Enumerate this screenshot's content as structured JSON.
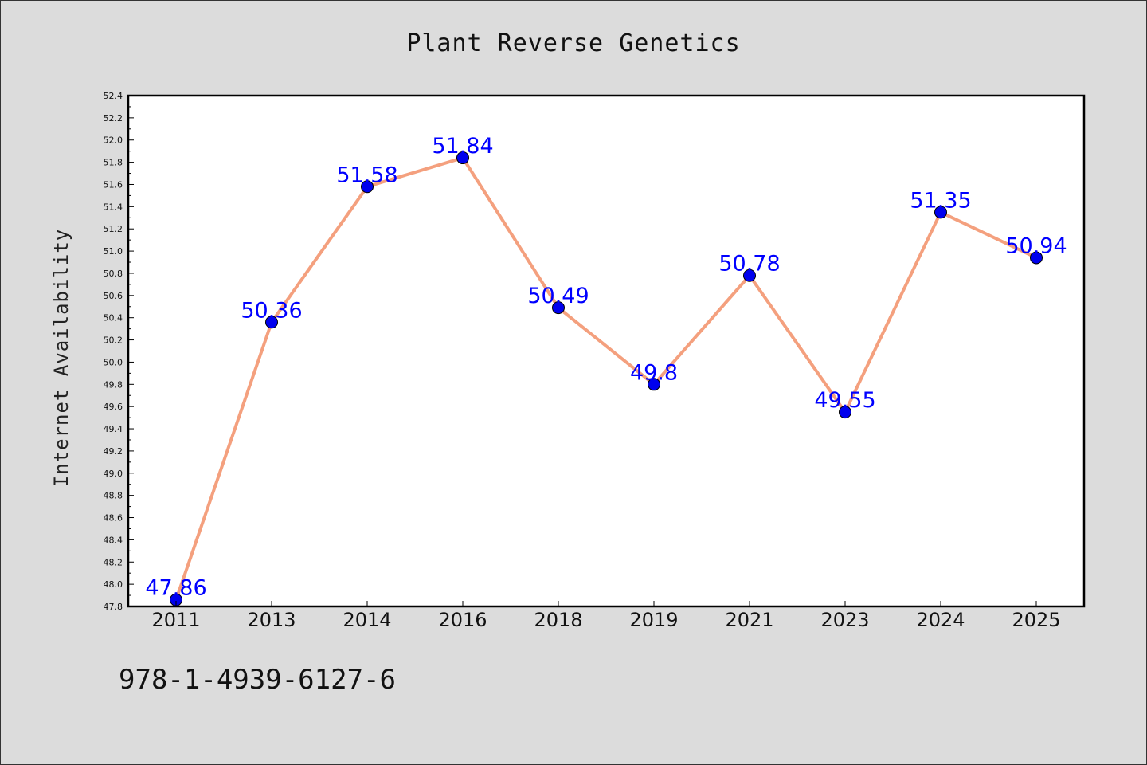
{
  "chart_data": {
    "type": "line",
    "title": "Plant Reverse Genetics",
    "xlabel": "",
    "ylabel": "Internet Availability",
    "categories": [
      "2011",
      "2013",
      "2014",
      "2016",
      "2018",
      "2019",
      "2021",
      "2023",
      "2024",
      "2025"
    ],
    "series": [
      {
        "values": [
          47.86,
          50.36,
          51.58,
          51.84,
          50.49,
          49.8,
          50.78,
          49.55,
          51.35,
          50.94
        ]
      }
    ],
    "data_labels": [
      "47.86",
      "50.36",
      "51.58",
      "51.84",
      "50.49",
      "49.8",
      "50.78",
      "49.55",
      "51.35",
      "50.94"
    ],
    "ylim": [
      47.8,
      52.4
    ],
    "yticks": [
      "47.8",
      "48.0",
      "48.2",
      "48.4",
      "48.6",
      "48.8",
      "49.0",
      "49.2",
      "49.4",
      "49.6",
      "49.8",
      "50.0",
      "50.2",
      "50.4",
      "50.6",
      "50.8",
      "51.0",
      "51.2",
      "51.4",
      "51.6",
      "51.8",
      "52.0",
      "52.2",
      "52.4"
    ],
    "grid": false,
    "legend": "none",
    "colors": {
      "line": "#f4a07e",
      "marker": "#0000ee",
      "label": "#0000ff",
      "plot_bg": "#ffffff",
      "figure_bg": "#dcdcdc"
    }
  },
  "footer": {
    "text": "978-1-4939-6127-6"
  }
}
